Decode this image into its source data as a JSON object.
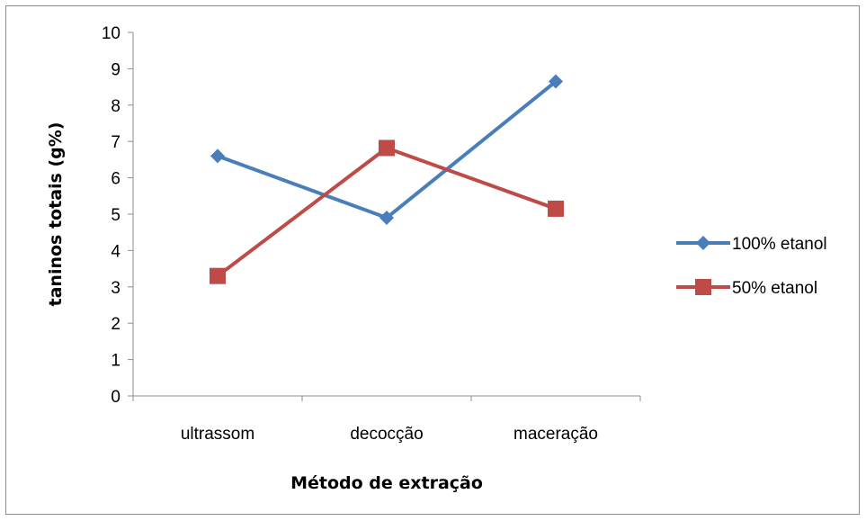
{
  "chart_data": {
    "type": "line",
    "title": "",
    "xlabel": "Método de extração",
    "ylabel": "taninos totais (g%)",
    "categories": [
      "ultrassom",
      "decocção",
      "maceração"
    ],
    "ylim": [
      0,
      10
    ],
    "yticks": [
      "0",
      "1",
      "2",
      "3",
      "4",
      "5",
      "6",
      "7",
      "8",
      "9",
      "10"
    ],
    "grid": false,
    "legend_position": "right",
    "series": [
      {
        "name": "100% etanol",
        "values": [
          6.6,
          4.9,
          8.65
        ],
        "color": "#4a7ebb",
        "marker": "diamond"
      },
      {
        "name": "50% etanol",
        "values": [
          3.3,
          6.82,
          5.15
        ],
        "color": "#be4b48",
        "marker": "square"
      }
    ]
  }
}
